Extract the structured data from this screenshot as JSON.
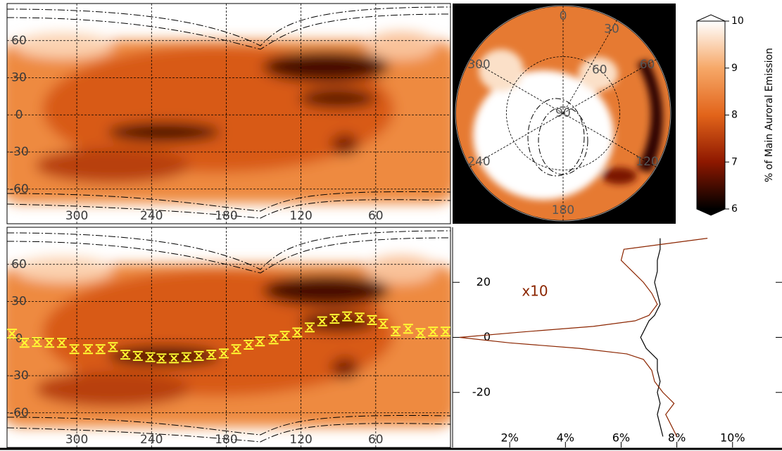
{
  "chart_data": [
    {
      "type": "map",
      "xlim": [
        356,
        0
      ],
      "ylim": [
        -88,
        90
      ],
      "xticks": [
        300,
        240,
        180,
        120,
        60
      ],
      "yticks": [
        60,
        30,
        0,
        -30,
        -60
      ],
      "grid": true
    },
    {
      "type": "polar",
      "rlim": [
        90,
        33
      ],
      "rticks": [
        60,
        90
      ],
      "theta_ticks": [
        0,
        30,
        60,
        120,
        180,
        240,
        300
      ],
      "colorbar": {
        "lim": [
          6,
          10
        ],
        "ticks": [
          6,
          7,
          8,
          9,
          10
        ],
        "label": "% of Main Auroral Emission",
        "colors": [
          "#000000",
          "#8e1800",
          "#e2641a",
          "#f6a868",
          "#ffffff"
        ]
      }
    },
    {
      "type": "scatter",
      "xlim": [
        356,
        0
      ],
      "ylim": [
        -88,
        90
      ],
      "xticks": [
        300,
        240,
        180,
        120,
        60
      ],
      "yticks": [
        60,
        30,
        0,
        -30,
        -60
      ],
      "grid": true,
      "color": "#ffff33",
      "x": [
        352,
        342,
        332,
        322,
        312,
        302,
        291,
        281,
        271,
        261,
        251,
        241,
        232,
        222,
        212,
        202,
        192,
        182,
        172,
        162,
        153,
        142,
        133,
        123,
        113,
        103,
        93,
        83,
        73,
        63,
        54,
        44,
        34,
        24,
        14,
        4
      ],
      "y": [
        4,
        -3.4,
        -2.8,
        -3.4,
        -3.4,
        -8.5,
        -8.5,
        -8.5,
        -6.8,
        -13,
        -14,
        -15,
        -16,
        -16,
        -15,
        -14,
        -13,
        -12,
        -8.5,
        -5,
        -2.3,
        -0.6,
        2.3,
        5,
        9,
        14,
        16,
        18,
        17,
        15,
        12,
        6,
        8,
        4.5,
        5.7,
        5.7
      ]
    },
    {
      "type": "line",
      "xlim": [
        0,
        11.75
      ],
      "ylim": [
        -40,
        40
      ],
      "xticks": [
        {
          "value": 2,
          "label": "2%"
        },
        {
          "value": 4,
          "label": "4%"
        },
        {
          "value": 6,
          "label": "6%"
        },
        {
          "value": 8,
          "label": "8%"
        },
        {
          "value": 10,
          "label": "10%"
        }
      ],
      "yticks": [
        20,
        0,
        -20
      ],
      "annotation": "x10",
      "y": [
        36,
        32,
        28,
        24,
        20,
        16,
        12,
        8,
        6,
        4,
        2,
        0,
        -2,
        -4,
        -6,
        -8,
        -12,
        -16,
        -20,
        -24,
        -28,
        -32,
        -36
      ],
      "series": [
        {
          "color": "#000000",
          "values": [
            7.4,
            7.4,
            7.3,
            7.3,
            7.2,
            7.3,
            7.4,
            7.2,
            7.0,
            6.9,
            6.8,
            6.7,
            6.8,
            6.9,
            7.1,
            7.3,
            7.3,
            7.4,
            7.3,
            7.4,
            7.3,
            7.4,
            7.5
          ]
        },
        {
          "color": "#8b2500",
          "values": [
            9.1,
            6.1,
            6.0,
            6.4,
            6.8,
            7.1,
            7.3,
            7.0,
            6.5,
            5.0,
            2.5,
            0.2,
            2.0,
            4.5,
            6.2,
            6.8,
            7.1,
            7.2,
            7.5,
            7.9,
            7.6,
            7.8,
            8.0
          ]
        }
      ]
    }
  ]
}
